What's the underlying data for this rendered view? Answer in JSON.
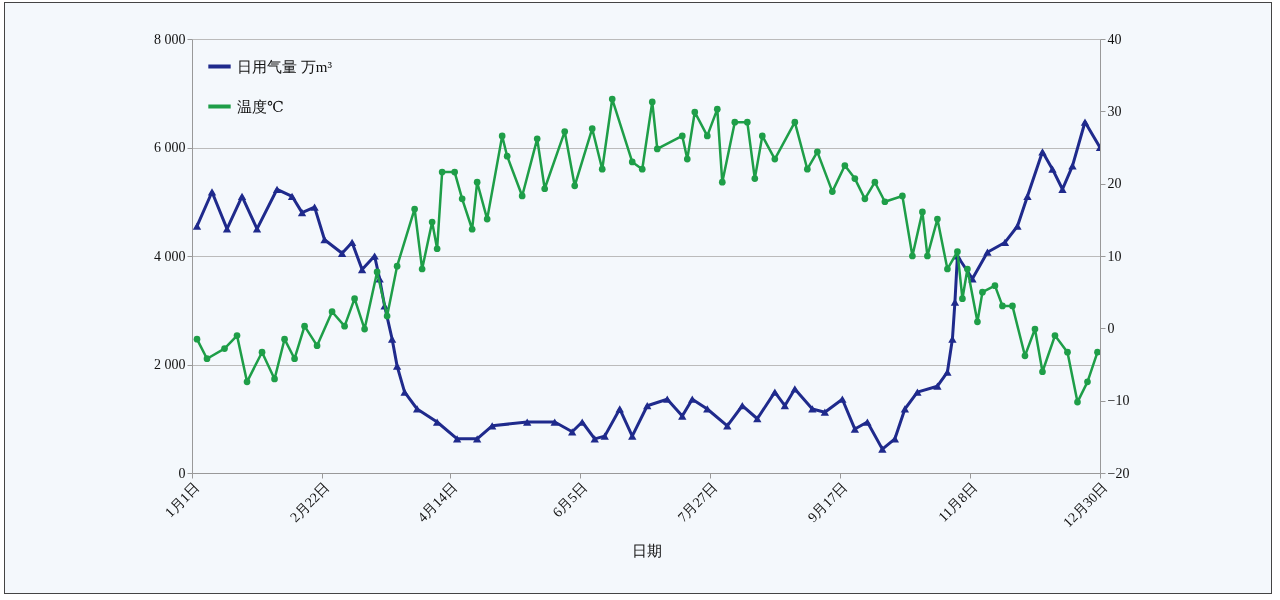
{
  "chart_data": {
    "type": "line",
    "xlabel": "日期",
    "legend": "top left",
    "grid": "y",
    "xlim": [
      "--01-01",
      "--12-30"
    ],
    "xticks": [
      {
        "value": "--01-01",
        "label": "1月1日"
      },
      {
        "value": "--02-22",
        "label": "2月22日"
      },
      {
        "value": "--04-14",
        "label": "4月14日"
      },
      {
        "value": "--06-05",
        "label": "6月5日"
      },
      {
        "value": "--07-27",
        "label": "7月27日"
      },
      {
        "value": "--09-17",
        "label": "9月17日"
      },
      {
        "value": "--11-08",
        "label": "11月8日"
      },
      {
        "value": "--12-30",
        "label": "12月30日"
      }
    ],
    "ylim": [
      0,
      8000
    ],
    "yticks": [
      0,
      {
        "value": 2000,
        "label": "2 000"
      },
      {
        "value": 4000,
        "label": "4 000"
      },
      {
        "value": 6000,
        "label": "6 000"
      },
      {
        "value": 8000,
        "label": "8 000"
      }
    ],
    "y2lim": [
      -20,
      40
    ],
    "y2ticks": [
      {
        "value": -20,
        "label": "−20"
      },
      {
        "value": -10,
        "label": "−10"
      },
      0,
      10,
      20,
      30,
      40
    ],
    "series": [
      {
        "name": "日用气量 万m³",
        "color": "#1f2a8c",
        "marker": "triangle",
        "x": [
          "--01-03",
          "--01-09",
          "--01-15",
          "--01-21",
          "--01-27",
          "--02-04",
          "--02-10",
          "--02-14",
          "--02-19",
          "--02-23",
          "--03-02",
          "--03-06",
          "--03-10",
          "--03-15",
          "--03-17",
          "--03-19",
          "--03-22",
          "--03-24",
          "--03-27",
          "--04-01",
          "--04-09",
          "--04-17",
          "--04-25",
          "--05-01",
          "--05-15",
          "--05-26",
          "--06-02",
          "--06-06",
          "--06-11",
          "--06-15",
          "--06-21",
          "--06-26",
          "--07-02",
          "--07-10",
          "--07-16",
          "--07-20",
          "--07-26",
          "--08-03",
          "--08-09",
          "--08-15",
          "--08-22",
          "--08-26",
          "--08-30",
          "--09-06",
          "--09-11",
          "--09-18",
          "--09-23",
          "--09-28",
          "--10-04",
          "--10-09",
          "--10-13",
          "--10-18",
          "--10-26",
          "--10-30",
          "--11-01",
          "--11-02",
          "--11-03",
          "--11-09",
          "--11-15",
          "--11-22",
          "--11-27",
          "--12-01",
          "--12-07",
          "--12-11",
          "--12-15",
          "--12-19",
          "--12-24",
          "--12-30"
        ],
        "values": [
          4550,
          5180,
          4500,
          5100,
          4500,
          5230,
          5100,
          4800,
          4900,
          4300,
          4050,
          4250,
          3750,
          4000,
          3580,
          3080,
          2470,
          1970,
          1490,
          1180,
          940,
          630,
          630,
          870,
          940,
          940,
          760,
          940,
          630,
          680,
          1180,
          680,
          1240,
          1360,
          1050,
          1360,
          1180,
          870,
          1240,
          1000,
          1490,
          1240,
          1550,
          1180,
          1120,
          1360,
          810,
          940,
          440,
          630,
          1180,
          1490,
          1600,
          1860,
          2470,
          3150,
          4000,
          3580,
          4070,
          4250,
          4550,
          5100,
          5920,
          5600,
          5230,
          5660,
          6470,
          6000
        ]
      },
      {
        "name": "温度℃",
        "color": "#1e9e48",
        "marker": "circle",
        "axis": "y2",
        "x": [
          "--01-03",
          "--01-07",
          "--01-14",
          "--01-19",
          "--01-23",
          "--01-29",
          "--02-03",
          "--02-07",
          "--02-11",
          "--02-15",
          "--02-20",
          "--02-26",
          "--03-03",
          "--03-07",
          "--03-11",
          "--03-16",
          "--03-20",
          "--03-24",
          "--03-31",
          "--04-03",
          "--04-07",
          "--04-09",
          "--04-11",
          "--04-16",
          "--04-19",
          "--04-23",
          "--04-25",
          "--04-29",
          "--05-05",
          "--05-07",
          "--05-13",
          "--05-19",
          "--05-22",
          "--05-30",
          "--06-03",
          "--06-10",
          "--06-14",
          "--06-18",
          "--06-26",
          "--06-30",
          "--07-04",
          "--07-06",
          "--07-16",
          "--07-18",
          "--07-21",
          "--07-26",
          "--07-30",
          "--08-01",
          "--08-06",
          "--08-11",
          "--08-14",
          "--08-17",
          "--08-22",
          "--08-30",
          "--09-04",
          "--09-08",
          "--09-14",
          "--09-19",
          "--09-23",
          "--09-27",
          "--10-01",
          "--10-05",
          "--10-12",
          "--10-16",
          "--10-20",
          "--10-22",
          "--10-26",
          "--10-30",
          "--11-03",
          "--11-05",
          "--11-07",
          "--11-11",
          "--11-13",
          "--11-18",
          "--11-21",
          "--11-25",
          "--11-30",
          "--12-04",
          "--12-07",
          "--12-12",
          "--12-17",
          "--12-21",
          "--12-25",
          "--12-29"
        ],
        "values": [
          -1.5,
          -4.2,
          -2.8,
          -1,
          -7.4,
          -3.3,
          -7,
          -1.5,
          -4.2,
          0.3,
          -2.4,
          2.3,
          0.3,
          4.1,
          -0.1,
          7.8,
          1.7,
          8.6,
          16.5,
          8.2,
          14.7,
          11,
          21.6,
          21.6,
          17.9,
          13.7,
          20.2,
          15.1,
          26.6,
          23.8,
          18.3,
          26.2,
          19.3,
          27.2,
          19.7,
          27.6,
          22,
          31.7,
          23,
          22,
          31.3,
          24.8,
          26.6,
          23.4,
          29.9,
          26.6,
          30.3,
          20.2,
          28.5,
          28.5,
          20.7,
          26.6,
          23.4,
          28.5,
          22,
          24.4,
          18.9,
          22.5,
          20.7,
          17.9,
          20.2,
          17.5,
          18.3,
          10,
          16.1,
          10,
          15.1,
          8.2,
          10.6,
          4.1,
          8.2,
          0.9,
          5,
          5.9,
          3.1,
          3.1,
          -3.8,
          -0.1,
          -6,
          -1,
          -3.3,
          -10.2,
          -7.4,
          -3.3
        ]
      }
    ]
  }
}
